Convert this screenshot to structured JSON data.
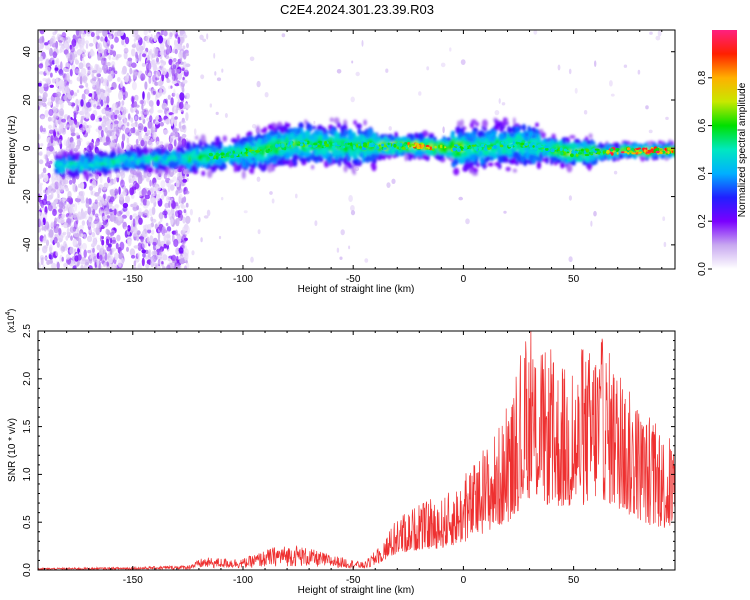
{
  "figure": {
    "title": "C2E4.2024.301.23.39.R03"
  },
  "chart_data": [
    {
      "type": "heatmap",
      "xlabel": "Height of straight line (km)",
      "ylabel": "Frequency (Hz)",
      "xlim": [
        -193,
        96
      ],
      "ylim": [
        -50,
        49
      ],
      "xticks": [
        -150,
        -100,
        -50,
        0,
        50
      ],
      "yticks": [
        -40,
        -20,
        0,
        20,
        40
      ],
      "colorbar": {
        "label": "Normalized spectral amplitude",
        "range": [
          0.0,
          1.0
        ],
        "ticks": [
          0.0,
          0.2,
          0.4,
          0.6,
          0.8
        ],
        "tick_labels": [
          "0.0",
          "0.2",
          "0.4",
          "0.6",
          "0.8"
        ],
        "colormap": [
          "#ffffff",
          "#c8a8f0",
          "#7a00ff",
          "#2020ff",
          "#00b0ff",
          "#00e8c0",
          "#00e000",
          "#c8e800",
          "#ffb000",
          "#ff2000",
          "#ff2080"
        ]
      },
      "band_center_hz": [
        {
          "x": -175,
          "f": -7
        },
        {
          "x": -150,
          "f": -5
        },
        {
          "x": -125,
          "f": -4
        },
        {
          "x": -100,
          "f": -2
        },
        {
          "x": -75,
          "f": 2
        },
        {
          "x": -50,
          "f": 1
        },
        {
          "x": -25,
          "f": 1
        },
        {
          "x": 0,
          "f": 0
        },
        {
          "x": 25,
          "f": 2
        },
        {
          "x": 50,
          "f": -2
        },
        {
          "x": 75,
          "f": -1
        },
        {
          "x": 96,
          "f": -1
        }
      ],
      "grid": false
    },
    {
      "type": "line",
      "xlabel": "Height of straight line (km)",
      "ylabel": "SNR (10 * v/v)",
      "y_multiplier_label": "(x10",
      "y_multiplier_exp": "4",
      "xlim": [
        -193,
        96
      ],
      "ylim": [
        0,
        2.5
      ],
      "xticks": [
        -150,
        -100,
        -50,
        0,
        50
      ],
      "yticks": [
        0.0,
        0.5,
        1.0,
        1.5,
        2.0,
        2.5
      ],
      "ytick_labels": [
        "0.0",
        "0.5",
        "1.0",
        "1.5",
        "2.0",
        "2.5"
      ],
      "color": "#ee3030",
      "envelope": [
        {
          "x": -193,
          "y": 0.02
        },
        {
          "x": -150,
          "y": 0.03
        },
        {
          "x": -125,
          "y": 0.05
        },
        {
          "x": -118,
          "y": 0.13
        },
        {
          "x": -100,
          "y": 0.12
        },
        {
          "x": -85,
          "y": 0.25
        },
        {
          "x": -75,
          "y": 0.26
        },
        {
          "x": -60,
          "y": 0.16
        },
        {
          "x": -45,
          "y": 0.08
        },
        {
          "x": -38,
          "y": 0.25
        },
        {
          "x": -30,
          "y": 0.55
        },
        {
          "x": -20,
          "y": 0.7
        },
        {
          "x": -10,
          "y": 0.75
        },
        {
          "x": 0,
          "y": 0.95
        },
        {
          "x": 10,
          "y": 1.3
        },
        {
          "x": 20,
          "y": 1.65
        },
        {
          "x": 30,
          "y": 2.5
        },
        {
          "x": 40,
          "y": 2.2
        },
        {
          "x": 50,
          "y": 2.1
        },
        {
          "x": 62,
          "y": 2.5
        },
        {
          "x": 75,
          "y": 1.9
        },
        {
          "x": 85,
          "y": 1.55
        },
        {
          "x": 96,
          "y": 1.35
        }
      ],
      "grid": false
    }
  ]
}
